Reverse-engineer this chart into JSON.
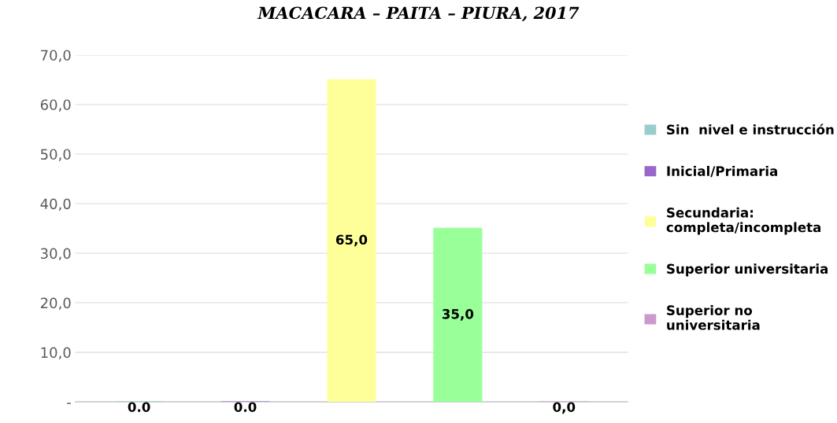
{
  "chart_data": {
    "type": "bar",
    "title": "MACACARA – PAITA – PIURA, 2017",
    "categories": [
      null,
      null,
      null,
      null,
      null
    ],
    "series": [
      {
        "name": "Sin  nivel e instrucción",
        "color": "#99cccc",
        "values": [
          0.0,
          null,
          null,
          null,
          null
        ],
        "value_labels": [
          "0.0",
          null,
          null,
          null,
          null
        ]
      },
      {
        "name": "Inicial/Primaria",
        "color": "#9966cc",
        "values": [
          null,
          0.0,
          null,
          null,
          null
        ],
        "value_labels": [
          null,
          "0.0",
          null,
          null,
          null
        ]
      },
      {
        "name": "Secundaria:\ncompleta/incompleta",
        "color": "#ffff99",
        "values": [
          null,
          null,
          65.0,
          null,
          null
        ],
        "value_labels": [
          null,
          null,
          "65,0",
          null,
          null
        ]
      },
      {
        "name": "Superior universitaria",
        "color": "#99ff99",
        "values": [
          null,
          null,
          null,
          35.0,
          null
        ],
        "value_labels": [
          null,
          null,
          null,
          "35,0",
          null
        ]
      },
      {
        "name": "Superior no\nuniversitaria",
        "color": "#cc99cc",
        "values": [
          null,
          null,
          null,
          null,
          0.0
        ],
        "value_labels": [
          null,
          null,
          null,
          null,
          "0,0"
        ]
      }
    ],
    "ylim": [
      0,
      70
    ],
    "yticks": [
      {
        "value": 0,
        "label": "-"
      },
      {
        "value": 10,
        "label": "10,0"
      },
      {
        "value": 20,
        "label": "20,0"
      },
      {
        "value": 30,
        "label": "30,0"
      },
      {
        "value": 40,
        "label": "40,0"
      },
      {
        "value": 50,
        "label": "50,0"
      },
      {
        "value": 60,
        "label": "60,0"
      },
      {
        "value": 70,
        "label": "70,0"
      }
    ],
    "grid": "y",
    "legend": "right"
  }
}
